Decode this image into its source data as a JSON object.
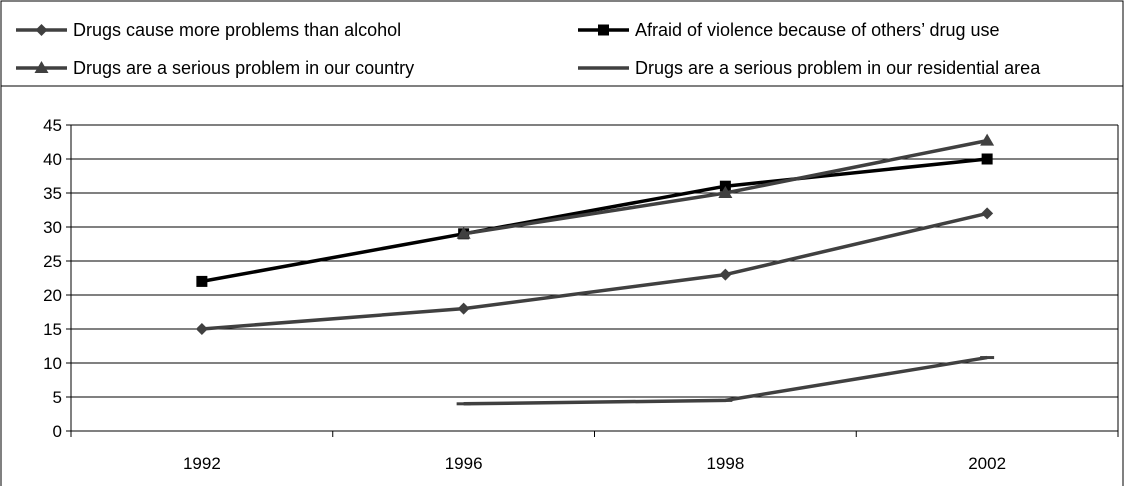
{
  "chart_data": {
    "type": "line",
    "title": "",
    "xlabel": "",
    "ylabel": "",
    "categories": [
      "1992",
      "1996",
      "1998",
      "2002"
    ],
    "ylim": [
      0,
      45
    ],
    "yticks": [
      0,
      5,
      10,
      15,
      20,
      25,
      30,
      35,
      40,
      45
    ],
    "grid": "horizontal",
    "legend_position": "top",
    "series": [
      {
        "name": "Drugs cause more problems than alcohol",
        "marker": "diamond",
        "color": "#404040",
        "values": [
          15,
          18,
          23,
          32
        ]
      },
      {
        "name": "Afraid of violence because of others’ drug use",
        "marker": "square",
        "color": "#000000",
        "values": [
          22,
          29,
          36,
          40
        ]
      },
      {
        "name": "Drugs are a serious problem in our country",
        "marker": "triangle",
        "color": "#404040",
        "values": [
          null,
          29,
          35,
          42.7
        ]
      },
      {
        "name": "Drugs are a serious problem in our residential area",
        "marker": "dash",
        "color": "#404040",
        "values": [
          null,
          4,
          4.5,
          10.8
        ]
      }
    ]
  }
}
